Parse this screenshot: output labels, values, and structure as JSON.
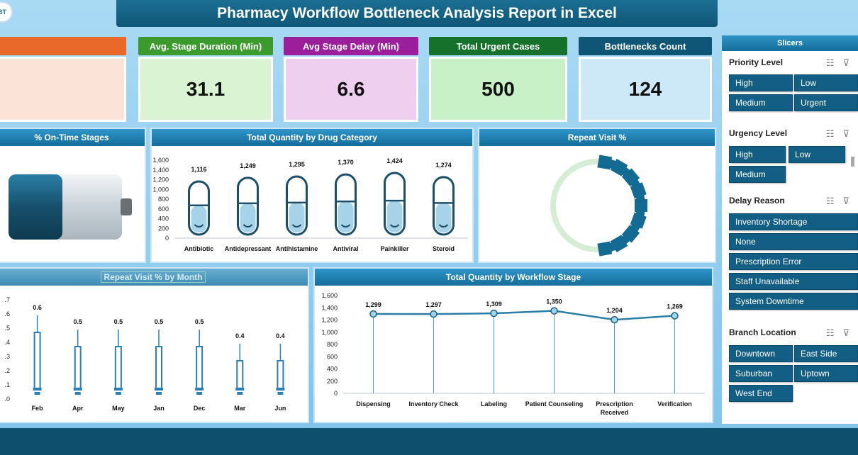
{
  "title": "Pharmacy Workflow Bottleneck Analysis Report in Excel",
  "logo_text": "BT",
  "kpis": [
    {
      "label": "",
      "value": "",
      "head_color": "#e8692a",
      "body_color": "#fbe3d8"
    },
    {
      "label": "Avg. Stage Duration (Min)",
      "value": "31.1",
      "head_color": "#3a9a2c",
      "body_color": "#d9f3d3"
    },
    {
      "label": "Avg Stage Delay (Min)",
      "value": "6.6",
      "head_color": "#9b1f9a",
      "body_color": "#efcff0"
    },
    {
      "label": "Total Urgent Cases",
      "value": "500",
      "head_color": "#16722a",
      "body_color": "#c8f1c8"
    },
    {
      "label": "Bottlenecks Count",
      "value": "124",
      "head_color": "#0f5676",
      "body_color": "#cde8f6"
    }
  ],
  "panels": {
    "ontime": {
      "title": "% On-Time Stages"
    },
    "drug": {
      "title": "Total Quantity by Drug Category"
    },
    "repeat": {
      "title": "Repeat Visit %"
    },
    "month": {
      "title": "Repeat Visit % by Month"
    },
    "workflow": {
      "title": "Total Quantity by Workflow Stage"
    }
  },
  "chart_data": [
    {
      "id": "drug",
      "type": "bar",
      "title": "Total Quantity by Drug Category",
      "categories": [
        "Antibiotic",
        "Antidepressant",
        "Antihistamine",
        "Antiviral",
        "Painkiller",
        "Steroid"
      ],
      "values": [
        1116,
        1249,
        1295,
        1370,
        1424,
        1274
      ],
      "labels": [
        "1,116",
        "1,249",
        "1,295",
        "1,370",
        "1,424",
        "1,274"
      ],
      "yticks": [
        "1,600",
        "1,400",
        "1,200",
        "1,000",
        "800",
        "600",
        "400",
        "200",
        "0"
      ],
      "ylim": [
        0,
        1600
      ]
    },
    {
      "id": "month",
      "type": "bar",
      "title": "Repeat Visit % by Month",
      "categories": [
        "Feb",
        "Apr",
        "May",
        "Jan",
        "Dec",
        "Mar",
        "Jun"
      ],
      "values": [
        0.6,
        0.5,
        0.5,
        0.5,
        0.5,
        0.4,
        0.4
      ],
      "labels": [
        "0.6",
        "0.5",
        "0.5",
        "0.5",
        "0.5",
        "0.4",
        "0.4"
      ],
      "yticks": [
        ".7",
        ".6",
        ".5",
        ".4",
        ".3",
        ".2",
        ".1",
        ".0"
      ],
      "ylim": [
        0,
        0.7
      ]
    },
    {
      "id": "workflow",
      "type": "line",
      "title": "Total Quantity by Workflow Stage",
      "categories": [
        "Dispensing",
        "Inventory Check",
        "Labeling",
        "Patient Counseling",
        "Prescription Received",
        "Verification"
      ],
      "values": [
        1299,
        1297,
        1309,
        1350,
        1204,
        1269
      ],
      "labels": [
        "1,299",
        "1,297",
        "1,309",
        "1,350",
        "1,204",
        "1,269"
      ],
      "yticks": [
        "1,600",
        "1,400",
        "1,200",
        "1,000",
        "800",
        "600",
        "400",
        "200",
        "0"
      ],
      "ylim": [
        0,
        1600
      ]
    }
  ],
  "slicers": {
    "title": "Slicers",
    "priority": {
      "title": "Priority Level",
      "items": [
        "High",
        "Low",
        "Medium",
        "Urgent"
      ]
    },
    "urgency": {
      "title": "Urgency Level",
      "items": [
        "High",
        "Low",
        "Medium"
      ]
    },
    "delay": {
      "title": "Delay Reason",
      "items": [
        "Inventory Shortage",
        "None",
        "Prescription Error",
        "Staff Unavailable",
        "System Downtime"
      ]
    },
    "branch": {
      "title": "Branch Location",
      "items": [
        "Downtown",
        "East Side",
        "Suburban",
        "Uptown",
        "West End"
      ]
    }
  },
  "icons": {
    "multiselect": "multiselect-icon",
    "clear_filter": "clear-filter-icon"
  }
}
